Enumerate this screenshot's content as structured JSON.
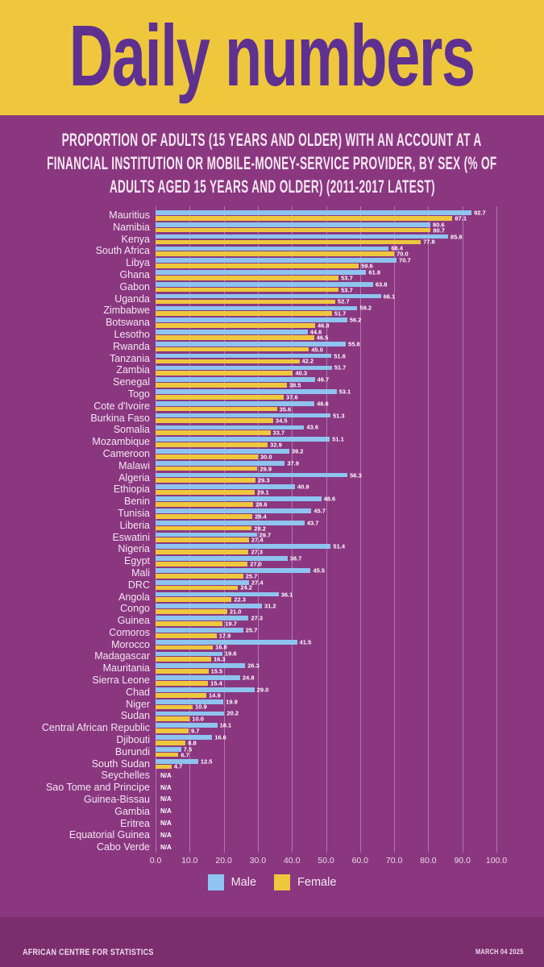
{
  "header": {
    "title": "Daily numbers"
  },
  "subtitle": {
    "lines": [
      "PROPORTION OF ADULTS (15 YEARS AND OLDER) WITH AN ACCOUNT AT A",
      "FINANCIAL INSTITUTION OR MOBILE-MONEY-SERVICE PROVIDER, BY SEX (% OF",
      "ADULTS AGED 15 YEARS AND OLDER) (2011-2017 LATEST)"
    ]
  },
  "colors": {
    "header_bg": "#EFC73D",
    "title": "#5E3191",
    "page_bg": "#8A3780",
    "footer_bg": "#7B2D6E",
    "male_bar": "#8EC4EF",
    "female_bar": "#EEC73E",
    "gridline": "rgba(255,255,255,0.32)"
  },
  "chart_data": {
    "type": "bar",
    "orientation": "horizontal",
    "title": "",
    "xlabel": "",
    "ylabel": "",
    "xlim": [
      0,
      100
    ],
    "grid": true,
    "legend_position": "bottom",
    "na_label": "N/A",
    "x_ticks": [
      "0.0",
      "10.0",
      "20.0",
      "30.0",
      "40.0",
      "50.0",
      "60.0",
      "70.0",
      "80.0",
      "90.0",
      "100.0"
    ],
    "categories": [
      "Mauritius",
      "Namibia",
      "Kenya",
      "South Africa",
      "Libya",
      "Ghana",
      "Gabon",
      "Uganda",
      "Zimbabwe",
      "Botswana",
      "Lesotho",
      "Rwanda",
      "Tanzania",
      "Zambia",
      "Senegal",
      "Togo",
      "Cote d'Ivoire",
      "Burkina Faso",
      "Somalia",
      "Mozambique",
      "Cameroon",
      "Malawi",
      "Algeria",
      "Ethiopia",
      "Benin",
      "Tunisia",
      "Liberia",
      "Eswatini",
      "Nigeria",
      "Egypt",
      "Mali",
      "DRC",
      "Angola",
      "Congo",
      "Guinea",
      "Comoros",
      "Morocco",
      "Madagascar",
      "Mauritania",
      "Sierra Leone",
      "Chad",
      "Niger",
      "Sudan",
      "Central African Republic",
      "Djibouti",
      "Burundi",
      "South Sudan",
      "Seychelles",
      "Sao Tome and Principe",
      "Guinea-Bissau",
      "Gambia",
      "Eritrea",
      "Equatorial Guinea",
      "Cabo Verde"
    ],
    "series": [
      {
        "name": "Male",
        "color": "#8EC4EF",
        "values": [
          92.7,
          80.6,
          85.8,
          68.4,
          70.7,
          61.8,
          63.8,
          66.1,
          59.2,
          56.2,
          44.6,
          55.8,
          51.6,
          51.7,
          46.7,
          53.1,
          46.6,
          51.3,
          43.6,
          51.1,
          39.2,
          37.9,
          56.3,
          40.9,
          48.6,
          45.7,
          43.7,
          29.7,
          51.4,
          38.7,
          45.5,
          27.4,
          36.1,
          31.2,
          27.3,
          25.7,
          41.5,
          19.6,
          26.3,
          24.8,
          29.0,
          19.9,
          20.2,
          18.1,
          16.6,
          7.5,
          12.5,
          null,
          null,
          null,
          null,
          null,
          null,
          null
        ]
      },
      {
        "name": "Female",
        "color": "#EEC73E",
        "values": [
          87.1,
          80.7,
          77.8,
          70.0,
          59.6,
          53.7,
          53.7,
          52.7,
          51.7,
          46.8,
          46.5,
          45.0,
          42.2,
          40.3,
          38.5,
          37.6,
          35.6,
          34.5,
          33.7,
          32.9,
          30.0,
          29.9,
          29.3,
          29.1,
          28.6,
          28.4,
          28.2,
          27.4,
          27.3,
          27.0,
          25.7,
          24.2,
          22.3,
          21.0,
          19.7,
          17.9,
          16.8,
          16.3,
          15.5,
          15.4,
          14.9,
          10.9,
          10.0,
          9.7,
          8.8,
          6.7,
          4.7,
          null,
          null,
          null,
          null,
          null,
          null,
          null
        ]
      }
    ]
  },
  "legend": {
    "items": [
      {
        "label": "Male",
        "color": "#8EC4EF"
      },
      {
        "label": "Female",
        "color": "#EEC73E"
      }
    ]
  },
  "footer": {
    "left": "AFRICAN CENTRE FOR STATISTICS",
    "right": "MARCH 04 2025"
  }
}
